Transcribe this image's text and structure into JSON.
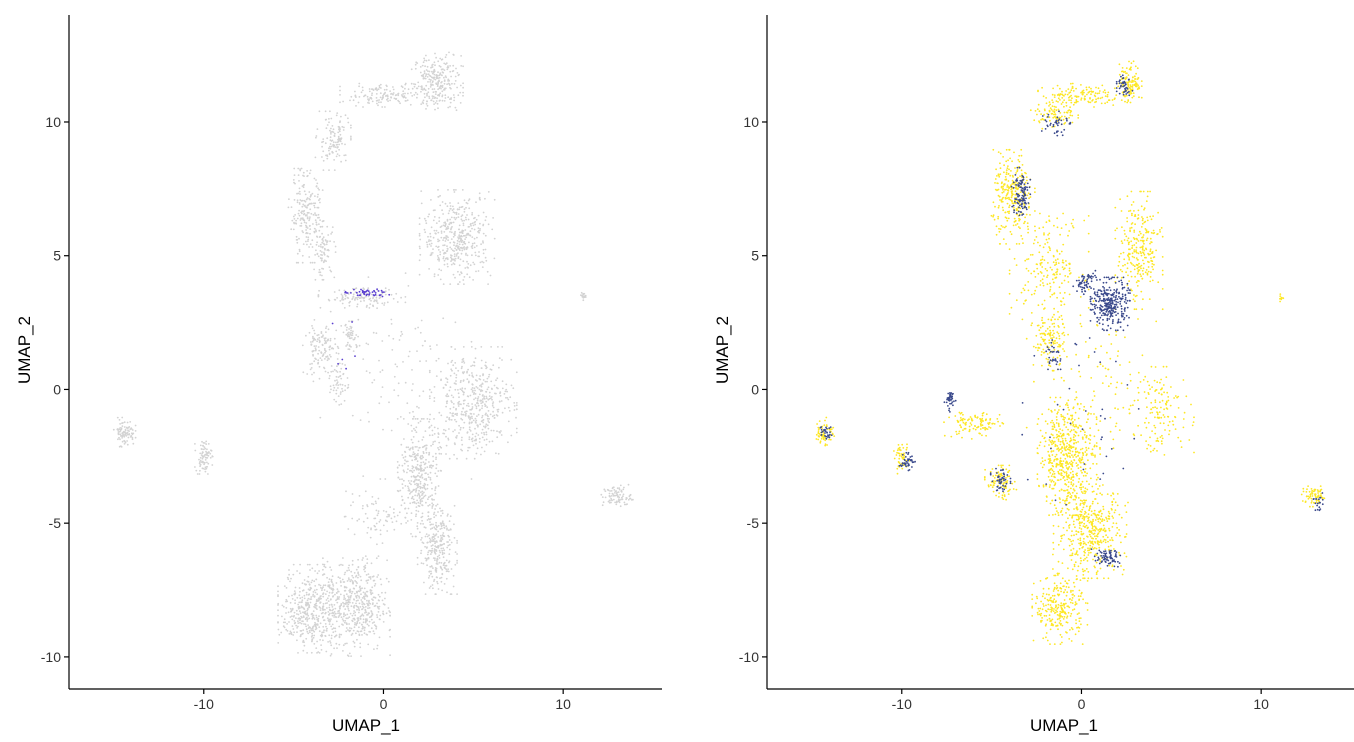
{
  "chart_data": [
    {
      "type": "scatter",
      "title": "",
      "xlabel": "UMAP_1",
      "ylabel": "UMAP_2",
      "xlim": [
        -17.5,
        15.5
      ],
      "ylim": [
        -11.2,
        14.0
      ],
      "x_ticks": [
        -10,
        0,
        10
      ],
      "y_ticks": [
        -10,
        -5,
        0,
        5,
        10
      ],
      "grid": false,
      "legend": "none",
      "colors": {
        "background": "#d3d3d3",
        "highlight": "#5a3fd0"
      },
      "clusters": [
        {
          "x": 3,
          "y": 11.5,
          "w": 1.3,
          "h": 1.0,
          "n": 260,
          "color": "background"
        },
        {
          "x": 0,
          "y": 11,
          "w": 2.2,
          "h": 0.4,
          "n": 140,
          "color": "background"
        },
        {
          "x": -2.8,
          "y": 9.3,
          "w": 0.9,
          "h": 1.0,
          "n": 120,
          "color": "background"
        },
        {
          "x": -4.3,
          "y": 6.5,
          "w": 0.9,
          "h": 1.6,
          "n": 200,
          "color": "background"
        },
        {
          "x": -3.3,
          "y": 5.2,
          "w": 0.6,
          "h": 1.0,
          "n": 80,
          "color": "background"
        },
        {
          "x": 4.1,
          "y": 5.7,
          "w": 1.9,
          "h": 1.6,
          "n": 420,
          "color": "background"
        },
        {
          "x": -1.2,
          "y": 3.4,
          "w": 2.2,
          "h": 0.35,
          "n": 120,
          "color": "background"
        },
        {
          "x": -3.5,
          "y": 1.5,
          "w": 0.9,
          "h": 1.0,
          "n": 120,
          "color": "background"
        },
        {
          "x": -1.8,
          "y": 2.0,
          "w": 0.5,
          "h": 0.5,
          "n": 50,
          "color": "background"
        },
        {
          "x": -2.5,
          "y": 0.3,
          "w": 0.5,
          "h": 0.8,
          "n": 50,
          "color": "background"
        },
        {
          "x": 5.0,
          "y": -0.5,
          "w": 2.2,
          "h": 1.9,
          "n": 460,
          "color": "background"
        },
        {
          "x": 2.0,
          "y": -3.3,
          "w": 1.1,
          "h": 2.0,
          "n": 360,
          "color": "background"
        },
        {
          "x": 3.0,
          "y": -6.0,
          "w": 1.0,
          "h": 1.5,
          "n": 260,
          "color": "background"
        },
        {
          "x": -4.0,
          "y": -8.2,
          "w": 1.7,
          "h": 1.5,
          "n": 450,
          "color": "background"
        },
        {
          "x": -1.5,
          "y": -8.1,
          "w": 1.7,
          "h": 1.7,
          "n": 480,
          "color": "background"
        },
        {
          "x": -14.4,
          "y": -1.6,
          "w": 0.55,
          "h": 0.5,
          "n": 90,
          "color": "background"
        },
        {
          "x": -10.0,
          "y": -2.5,
          "w": 0.45,
          "h": 0.6,
          "n": 80,
          "color": "background"
        },
        {
          "x": 13.0,
          "y": -4.0,
          "w": 0.8,
          "h": 0.4,
          "n": 90,
          "color": "background"
        },
        {
          "x": 11.1,
          "y": 3.5,
          "w": 0.15,
          "h": 0.15,
          "n": 15,
          "color": "background"
        },
        {
          "x": -0.5,
          "y": -4.8,
          "w": 1.6,
          "h": 0.9,
          "n": 70,
          "color": "background"
        },
        {
          "x": 0.5,
          "y": 0.5,
          "w": 4.0,
          "h": 3.5,
          "n": 110,
          "color": "background"
        },
        {
          "x": -1.0,
          "y": 3.6,
          "w": 1.2,
          "h": 0.15,
          "n": 45,
          "color": "highlight"
        },
        {
          "x": -2.0,
          "y": 1.2,
          "w": 0.8,
          "h": 1.2,
          "n": 6,
          "color": "highlight"
        }
      ]
    },
    {
      "type": "scatter",
      "title": "",
      "xlabel": "UMAP_1",
      "ylabel": "UMAP_2",
      "xlim": [
        -17.5,
        15.5
      ],
      "ylim": [
        -11.2,
        14.0
      ],
      "x_ticks": [
        -10,
        0,
        10
      ],
      "y_ticks": [
        -10,
        -5,
        0,
        5,
        10
      ],
      "grid": false,
      "legend": "none",
      "colors": {
        "yellow": "#fde725",
        "navy": "#3b4a8c"
      },
      "clusters": [
        {
          "x": 2.7,
          "y": 11.5,
          "w": 0.6,
          "h": 0.7,
          "n": 120,
          "color": "yellow"
        },
        {
          "x": 0.0,
          "y": 11.0,
          "w": 2.2,
          "h": 0.4,
          "n": 140,
          "color": "yellow"
        },
        {
          "x": -1.5,
          "y": 10.3,
          "w": 1.2,
          "h": 0.5,
          "n": 80,
          "color": "yellow"
        },
        {
          "x": -3.8,
          "y": 7.2,
          "w": 1.1,
          "h": 1.6,
          "n": 280,
          "color": "yellow"
        },
        {
          "x": -1.8,
          "y": 4.6,
          "w": 2.0,
          "h": 1.8,
          "n": 200,
          "color": "yellow"
        },
        {
          "x": 3.2,
          "y": 5.2,
          "w": 1.2,
          "h": 2.0,
          "n": 260,
          "color": "yellow"
        },
        {
          "x": -1.8,
          "y": 1.8,
          "w": 0.9,
          "h": 1.0,
          "n": 120,
          "color": "yellow"
        },
        {
          "x": -0.8,
          "y": -2.5,
          "w": 1.5,
          "h": 2.0,
          "n": 520,
          "color": "yellow"
        },
        {
          "x": 0.5,
          "y": -5.3,
          "w": 1.9,
          "h": 1.6,
          "n": 420,
          "color": "yellow"
        },
        {
          "x": -1.2,
          "y": -8.2,
          "w": 1.4,
          "h": 1.2,
          "n": 260,
          "color": "yellow"
        },
        {
          "x": -4.5,
          "y": -3.5,
          "w": 0.8,
          "h": 0.6,
          "n": 90,
          "color": "yellow"
        },
        {
          "x": -6.0,
          "y": -1.3,
          "w": 1.5,
          "h": 0.5,
          "n": 110,
          "color": "yellow"
        },
        {
          "x": 4.5,
          "y": -0.8,
          "w": 1.6,
          "h": 1.5,
          "n": 130,
          "color": "yellow"
        },
        {
          "x": -14.3,
          "y": -1.6,
          "w": 0.5,
          "h": 0.5,
          "n": 60,
          "color": "yellow"
        },
        {
          "x": -10.0,
          "y": -2.6,
          "w": 0.4,
          "h": 0.5,
          "n": 50,
          "color": "yellow"
        },
        {
          "x": 13.0,
          "y": -4.0,
          "w": 0.7,
          "h": 0.35,
          "n": 70,
          "color": "yellow"
        },
        {
          "x": 11.1,
          "y": 3.4,
          "w": 0.15,
          "h": 0.15,
          "n": 10,
          "color": "yellow"
        },
        {
          "x": 0.8,
          "y": 0.0,
          "w": 3.5,
          "h": 3.0,
          "n": 120,
          "color": "yellow"
        },
        {
          "x": 2.4,
          "y": 11.4,
          "w": 0.4,
          "h": 0.4,
          "n": 40,
          "color": "navy"
        },
        {
          "x": -1.5,
          "y": 10.0,
          "w": 0.8,
          "h": 0.5,
          "n": 40,
          "color": "navy"
        },
        {
          "x": -3.4,
          "y": 7.3,
          "w": 0.5,
          "h": 0.9,
          "n": 110,
          "color": "navy"
        },
        {
          "x": 1.6,
          "y": 3.2,
          "w": 1.0,
          "h": 0.9,
          "n": 300,
          "color": "navy"
        },
        {
          "x": 0.2,
          "y": 4.0,
          "w": 0.6,
          "h": 0.4,
          "n": 60,
          "color": "navy"
        },
        {
          "x": -1.6,
          "y": 1.3,
          "w": 0.4,
          "h": 0.5,
          "n": 30,
          "color": "navy"
        },
        {
          "x": -7.3,
          "y": -0.4,
          "w": 0.3,
          "h": 0.4,
          "n": 40,
          "color": "navy"
        },
        {
          "x": -4.5,
          "y": -3.4,
          "w": 0.5,
          "h": 0.4,
          "n": 50,
          "color": "navy"
        },
        {
          "x": 1.4,
          "y": -6.3,
          "w": 0.8,
          "h": 0.3,
          "n": 70,
          "color": "navy"
        },
        {
          "x": -14.2,
          "y": -1.6,
          "w": 0.3,
          "h": 0.3,
          "n": 30,
          "color": "navy"
        },
        {
          "x": -9.7,
          "y": -2.7,
          "w": 0.4,
          "h": 0.3,
          "n": 40,
          "color": "navy"
        },
        {
          "x": 13.1,
          "y": -4.2,
          "w": 0.3,
          "h": 0.3,
          "n": 20,
          "color": "navy"
        },
        {
          "x": 0.0,
          "y": -1.0,
          "w": 3.0,
          "h": 4.0,
          "n": 40,
          "color": "navy"
        }
      ]
    }
  ]
}
